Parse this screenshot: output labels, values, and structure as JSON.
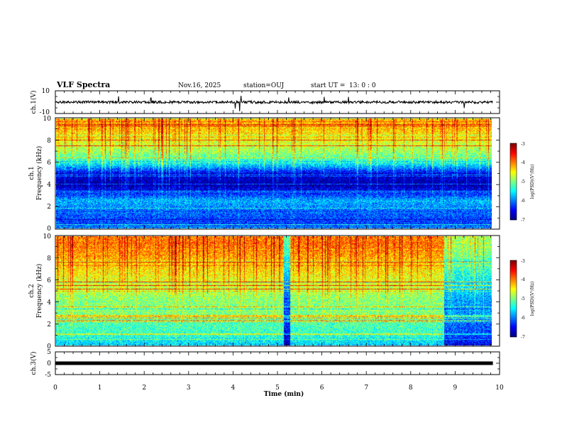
{
  "header": {
    "title": "VLF Spectra",
    "date": "Nov.16, 2025",
    "station": "station=OUJ",
    "start_label": "start  UT  =",
    "start_time": "13: 0  : 0"
  },
  "chart_data": [
    {
      "type": "line",
      "id": "ch1_waveform",
      "ylabel": "ch.1(V)",
      "ylim": [
        -10,
        10
      ],
      "yticks": [
        "10",
        "-10"
      ],
      "baseline": 0,
      "noise_amplitude": 1.2,
      "spikes": [
        {
          "t": 1.42,
          "v": 5.5
        },
        {
          "t": 2.15,
          "v": 4.0
        },
        {
          "t": 4.05,
          "v": -6.0
        },
        {
          "t": 4.15,
          "v": -8.5
        },
        {
          "t": 4.18,
          "v": 6.0
        },
        {
          "t": 5.25,
          "v": 4.5
        },
        {
          "t": 6.05,
          "v": 5.0
        },
        {
          "t": 6.6,
          "v": 5.0
        },
        {
          "t": 9.2,
          "v": -5.5
        }
      ]
    },
    {
      "type": "heatmap",
      "id": "ch1_spectrogram",
      "ylabel": "Frequency (kHz)",
      "channel_label": "ch.1",
      "ylim": [
        0,
        10
      ],
      "yticks": [
        "10",
        "8",
        "6",
        "4",
        "2",
        "0"
      ],
      "xlim": [
        0,
        9.85
      ],
      "colorbar": {
        "label": "log(PSD)(V²/Hz)",
        "min": -7,
        "max": -3,
        "ticks": [
          "-3",
          "-4",
          "-5",
          "-6",
          "-7"
        ]
      },
      "band_levels_by_frequency": [
        {
          "f": 0.0,
          "level": -6.0
        },
        {
          "f": 0.5,
          "level": -6.3
        },
        {
          "f": 1.5,
          "level": -6.1
        },
        {
          "f": 2.5,
          "level": -5.8
        },
        {
          "f": 3.2,
          "level": -6.4
        },
        {
          "f": 4.0,
          "level": -6.9
        },
        {
          "f": 5.0,
          "level": -6.6
        },
        {
          "f": 6.0,
          "level": -5.4
        },
        {
          "f": 7.0,
          "level": -4.9
        },
        {
          "f": 8.0,
          "level": -4.6
        },
        {
          "f": 9.0,
          "level": -4.3
        },
        {
          "f": 10.0,
          "level": -4.2
        }
      ],
      "time_steps": {
        "t": [],
        "delta": []
      }
    },
    {
      "type": "heatmap",
      "id": "ch2_spectrogram",
      "ylabel": "Frequency (kHz)",
      "channel_label": "ch.2",
      "ylim": [
        0,
        10
      ],
      "yticks": [
        "10",
        "8",
        "6",
        "4",
        "2",
        "0"
      ],
      "xlim": [
        0,
        9.85
      ],
      "colorbar": {
        "label": "log(PSD)(V²/Hz)",
        "min": -7,
        "max": -3,
        "ticks": [
          "-3",
          "-4",
          "-5",
          "-6",
          "-7"
        ]
      },
      "band_levels_by_frequency": [
        {
          "f": 0.0,
          "level": -5.7
        },
        {
          "f": 1.0,
          "level": -5.3
        },
        {
          "f": 2.0,
          "level": -5.2
        },
        {
          "f": 3.0,
          "level": -5.0
        },
        {
          "f": 4.0,
          "level": -5.0
        },
        {
          "f": 5.0,
          "level": -4.8
        },
        {
          "f": 6.0,
          "level": -4.6
        },
        {
          "f": 7.0,
          "level": -4.4
        },
        {
          "f": 8.0,
          "level": -4.2
        },
        {
          "f": 9.0,
          "level": -4.0
        },
        {
          "f": 10.0,
          "level": -4.0
        }
      ],
      "time_steps": {
        "t": [
          0,
          5.15,
          5.3,
          8.78
        ],
        "delta": [
          0.0,
          -1.2,
          0.0,
          -0.9
        ]
      }
    },
    {
      "type": "line",
      "id": "ch3_waveform",
      "ylabel": "ch.3(V)",
      "ylim": [
        -5,
        5
      ],
      "yticks": [
        "5",
        "0",
        "-5"
      ],
      "baseline": 0,
      "noise_amplitude": 0.0
    }
  ],
  "x_axis": {
    "label": "Time (min)",
    "range": [
      0,
      10
    ],
    "ticks": [
      "0",
      "1",
      "2",
      "3",
      "4",
      "5",
      "6",
      "7",
      "8",
      "9",
      "10"
    ],
    "data_end": 9.85
  }
}
